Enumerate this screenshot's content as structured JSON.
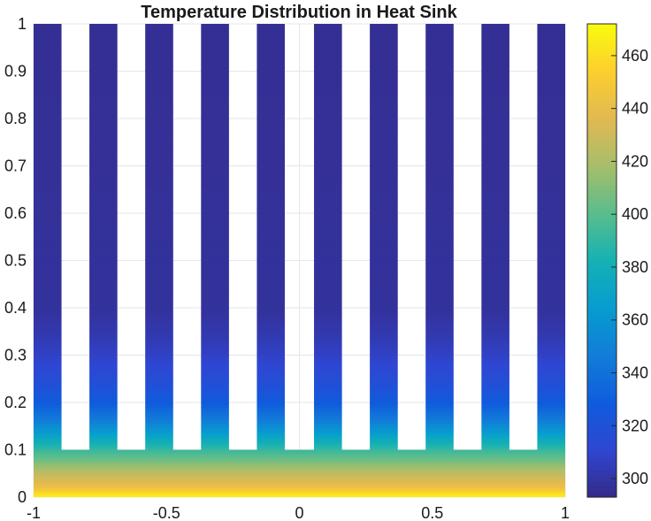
{
  "chart_data": {
    "type": "heatmap",
    "title": "Temperature Distribution in Heat Sink",
    "xlabel": "",
    "ylabel": "",
    "xlim": [
      -1,
      1
    ],
    "ylim": [
      0,
      1
    ],
    "x_ticks": [
      -1,
      -0.5,
      0,
      0.5,
      1
    ],
    "x_tick_labels": [
      "-1",
      "-0.5",
      "0",
      "0.5",
      "1"
    ],
    "y_ticks": [
      0,
      0.1,
      0.2,
      0.3,
      0.4,
      0.5,
      0.6,
      0.7,
      0.8,
      0.9,
      1
    ],
    "y_tick_labels": [
      "0",
      "0.1",
      "0.2",
      "0.3",
      "0.4",
      "0.5",
      "0.6",
      "0.7",
      "0.8",
      "0.9",
      "1"
    ],
    "grid": true,
    "colormap": "parula",
    "color_limits": [
      293,
      472
    ],
    "colorbar_ticks": [
      300,
      320,
      340,
      360,
      380,
      400,
      420,
      440,
      460
    ],
    "colorbar_tick_labels": [
      "300",
      "320",
      "340",
      "360",
      "380",
      "400",
      "420",
      "440",
      "460"
    ],
    "base": {
      "x": [
        -1,
        1
      ],
      "y": [
        0,
        0.1
      ]
    },
    "fin_height": 1.0,
    "fins": [
      {
        "x0": -1.0,
        "x1": -0.895
      },
      {
        "x0": -0.79,
        "x1": -0.685
      },
      {
        "x0": -0.58,
        "x1": -0.475
      },
      {
        "x0": -0.37,
        "x1": -0.265
      },
      {
        "x0": -0.16,
        "x1": -0.055
      },
      {
        "x0": 0.055,
        "x1": 0.16
      },
      {
        "x0": 0.265,
        "x1": 0.37
      },
      {
        "x0": 0.475,
        "x1": 0.58
      },
      {
        "x0": 0.685,
        "x1": 0.79
      },
      {
        "x0": 0.895,
        "x1": 1.0
      }
    ],
    "temperature_profile": {
      "y": [
        0,
        0.01,
        0.02,
        0.04,
        0.06,
        0.08,
        0.1,
        0.13,
        0.16,
        0.2,
        0.25,
        0.3,
        0.35,
        0.4,
        1.0
      ],
      "T": [
        470,
        458,
        444,
        432,
        420,
        405,
        392,
        370,
        348,
        328,
        316,
        308,
        302,
        298,
        296
      ]
    }
  }
}
